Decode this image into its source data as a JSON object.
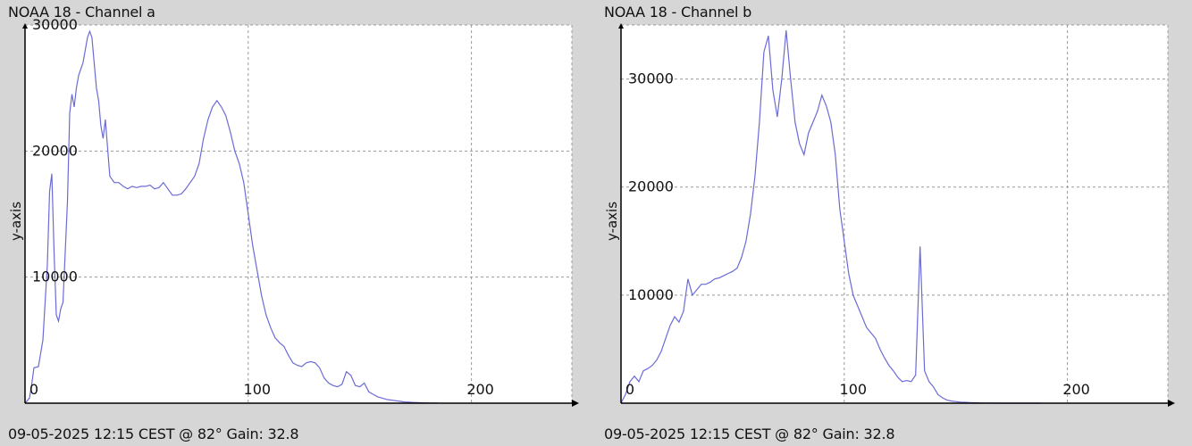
{
  "panels": [
    {
      "title": "NOAA 18 - Channel a",
      "footer": "09-05-2025 12:15 CEST @ 82° Gain: 32.8",
      "ylabel": "y-axis"
    },
    {
      "title": "NOAA 18 - Channel b",
      "footer": "09-05-2025 12:15 CEST @ 82° Gain: 32.8",
      "ylabel": "y-axis"
    }
  ],
  "colors": {
    "line": "#6b6bd6",
    "grid": "#9a9a9a",
    "plot_bg": "#ffffff",
    "axis": "#000000"
  },
  "chart_data": [
    {
      "type": "line",
      "title": "NOAA 18 - Channel a",
      "xlabel": "",
      "ylabel": "y-axis",
      "xlim": [
        0,
        245
      ],
      "ylim": [
        0,
        30000
      ],
      "xticks": [
        0,
        100,
        200
      ],
      "yticks": [
        10000,
        20000,
        30000
      ],
      "grid": true,
      "series": [
        {
          "x": [
            0,
            2,
            3,
            4,
            6,
            8,
            9,
            10,
            11,
            12,
            13,
            14,
            15,
            16,
            17,
            18,
            19,
            20,
            21,
            22,
            23,
            24,
            25,
            26,
            27,
            28,
            29,
            30,
            31,
            32,
            33,
            34,
            35,
            36,
            38,
            40,
            42,
            44,
            46,
            48,
            50,
            52,
            54,
            56,
            58,
            60,
            62,
            64,
            66,
            68,
            70,
            72,
            74,
            76,
            78,
            80,
            82,
            84,
            86,
            88,
            90,
            92,
            94,
            96,
            98,
            100,
            102,
            104,
            106,
            108,
            110,
            112,
            114,
            116,
            118,
            120,
            122,
            124,
            126,
            128,
            130,
            132,
            134,
            136,
            138,
            140,
            142,
            144,
            146,
            148,
            150,
            152,
            154,
            156,
            158,
            160,
            162,
            164,
            166,
            168,
            170,
            172,
            174,
            176,
            178,
            180,
            182,
            184,
            185
          ],
          "y": [
            0,
            400,
            1500,
            2800,
            2900,
            5000,
            8000,
            11000,
            16800,
            18200,
            12000,
            7000,
            6500,
            7500,
            8000,
            12000,
            16000,
            23000,
            24500,
            23500,
            25000,
            26000,
            26500,
            27000,
            28000,
            29000,
            29500,
            29000,
            27000,
            25000,
            24000,
            22000,
            21000,
            22500,
            18000,
            17500,
            17500,
            17200,
            17000,
            17200,
            17100,
            17200,
            17200,
            17300,
            17000,
            17100,
            17500,
            17000,
            16500,
            16500,
            16600,
            17000,
            17500,
            18000,
            19000,
            21000,
            22500,
            23500,
            24000,
            23500,
            22800,
            21500,
            20000,
            19000,
            17500,
            15000,
            12500,
            10500,
            8500,
            7000,
            6000,
            5200,
            4800,
            4500,
            3800,
            3200,
            3000,
            2900,
            3200,
            3300,
            3200,
            2800,
            2000,
            1600,
            1400,
            1300,
            1500,
            2500,
            2200,
            1400,
            1300,
            1600,
            900,
            700,
            500,
            400,
            300,
            250,
            200,
            150,
            100,
            80,
            60,
            40,
            30,
            20,
            15,
            10,
            5
          ]
        }
      ]
    },
    {
      "type": "line",
      "title": "NOAA 18 - Channel b",
      "xlabel": "",
      "ylabel": "y-axis",
      "xlim": [
        0,
        245
      ],
      "ylim": [
        0,
        35000
      ],
      "xticks": [
        0,
        100,
        200
      ],
      "yticks": [
        10000,
        20000,
        30000
      ],
      "grid": true,
      "series": [
        {
          "x": [
            0,
            2,
            4,
            6,
            8,
            10,
            12,
            14,
            16,
            18,
            20,
            22,
            24,
            26,
            28,
            30,
            32,
            34,
            36,
            38,
            40,
            42,
            44,
            46,
            48,
            50,
            52,
            54,
            56,
            58,
            60,
            62,
            64,
            66,
            68,
            70,
            72,
            74,
            76,
            78,
            80,
            82,
            84,
            86,
            88,
            90,
            92,
            94,
            96,
            98,
            100,
            102,
            104,
            106,
            108,
            110,
            112,
            114,
            116,
            118,
            120,
            122,
            124,
            126,
            128,
            130,
            132,
            134,
            136,
            138,
            140,
            142,
            144,
            146,
            148,
            150,
            152,
            154,
            156,
            158,
            160,
            162,
            164,
            166,
            168,
            170,
            172,
            174,
            176,
            178,
            180,
            182,
            184,
            186,
            188
          ],
          "y": [
            0,
            800,
            2000,
            2500,
            2000,
            3000,
            3200,
            3500,
            4000,
            4800,
            6000,
            7200,
            8000,
            7500,
            8500,
            11500,
            10000,
            10500,
            11000,
            11000,
            11200,
            11500,
            11600,
            11800,
            12000,
            12200,
            12500,
            13500,
            15000,
            17500,
            21000,
            26000,
            32500,
            34000,
            29000,
            26500,
            30000,
            34500,
            30000,
            26000,
            24000,
            23000,
            25000,
            26000,
            27000,
            28500,
            27500,
            26000,
            23000,
            18000,
            15000,
            12000,
            10000,
            9000,
            8000,
            7000,
            6500,
            6000,
            5000,
            4200,
            3500,
            3000,
            2400,
            2000,
            2100,
            2000,
            2600,
            14500,
            3000,
            2000,
            1500,
            800,
            500,
            300,
            200,
            150,
            100,
            80,
            60,
            40,
            30,
            20,
            10,
            5,
            0,
            0,
            0,
            0,
            0,
            0,
            0,
            0,
            0,
            0,
            0
          ]
        }
      ]
    }
  ]
}
